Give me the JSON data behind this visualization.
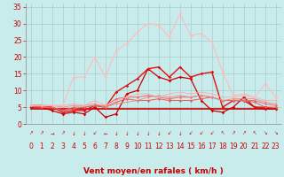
{
  "xlabel": "Vent moyen/en rafales ( km/h )",
  "bg_color": "#c8ecec",
  "grid_color": "#aacccc",
  "x_ticks": [
    0,
    1,
    2,
    3,
    4,
    5,
    6,
    7,
    8,
    9,
    10,
    11,
    12,
    13,
    14,
    15,
    16,
    17,
    18,
    19,
    20,
    21,
    22,
    23
  ],
  "ylim": [
    0,
    36
  ],
  "yticks": [
    0,
    5,
    10,
    15,
    20,
    25,
    30,
    35
  ],
  "series": [
    {
      "x": [
        0,
        1,
        2,
        3,
        4,
        5,
        6,
        7,
        8,
        9,
        10,
        11,
        12,
        13,
        14,
        15,
        16,
        17,
        18,
        19,
        20,
        21,
        22,
        23
      ],
      "y": [
        4.5,
        4.5,
        4.5,
        4.5,
        4.5,
        4.5,
        4.5,
        4.5,
        4.5,
        4.5,
        4.5,
        4.5,
        4.5,
        4.5,
        4.5,
        4.5,
        4.5,
        4.5,
        4.5,
        4.5,
        4.5,
        4.5,
        4.5,
        4.5
      ],
      "color": "#cc0000",
      "marker": null,
      "markersize": 0,
      "linewidth": 1.2
    },
    {
      "x": [
        0,
        1,
        2,
        3,
        4,
        5,
        6,
        7,
        8,
        9,
        10,
        11,
        12,
        13,
        14,
        15,
        16,
        17,
        18,
        19,
        20,
        21,
        22,
        23
      ],
      "y": [
        5,
        5,
        4,
        3,
        3.5,
        3,
        5,
        2,
        3,
        9,
        10,
        16.5,
        14,
        13,
        14,
        13.5,
        7,
        4,
        3.5,
        5,
        8,
        5,
        4.5,
        4.5
      ],
      "color": "#cc0000",
      "marker": "D",
      "markersize": 1.8,
      "linewidth": 0.9
    },
    {
      "x": [
        0,
        1,
        2,
        3,
        4,
        5,
        6,
        7,
        8,
        9,
        10,
        11,
        12,
        13,
        14,
        15,
        16,
        17,
        18,
        19,
        20,
        21,
        22,
        23
      ],
      "y": [
        5.5,
        5.5,
        5,
        3.5,
        4,
        4,
        5.5,
        5,
        9.5,
        11.5,
        13.5,
        16.5,
        17,
        14,
        17,
        14,
        15,
        15.5,
        5,
        7,
        7,
        5,
        5,
        4.5
      ],
      "color": "#dd1111",
      "marker": "D",
      "markersize": 1.8,
      "linewidth": 1.0
    },
    {
      "x": [
        0,
        1,
        2,
        3,
        4,
        5,
        6,
        7,
        8,
        9,
        10,
        11,
        12,
        13,
        14,
        15,
        16,
        17,
        18,
        19,
        20,
        21,
        22,
        23
      ],
      "y": [
        5.5,
        5,
        5,
        4,
        4.5,
        5,
        5.5,
        5,
        6.5,
        7.5,
        7,
        7,
        7.5,
        7,
        7,
        7,
        7.5,
        8,
        7,
        7,
        7,
        6.5,
        5,
        5
      ],
      "color": "#ee5555",
      "marker": "D",
      "markersize": 1.5,
      "linewidth": 0.7
    },
    {
      "x": [
        0,
        1,
        2,
        3,
        4,
        5,
        6,
        7,
        8,
        9,
        10,
        11,
        12,
        13,
        14,
        15,
        16,
        17,
        18,
        19,
        20,
        21,
        22,
        23
      ],
      "y": [
        5.5,
        5,
        5,
        4,
        5,
        5,
        5.5,
        5.5,
        7.5,
        8,
        8,
        8.5,
        8,
        7.5,
        8,
        8,
        8.5,
        8,
        7,
        7,
        7,
        7,
        6,
        5.5
      ],
      "color": "#ee6666",
      "marker": "D",
      "markersize": 1.5,
      "linewidth": 0.7
    },
    {
      "x": [
        0,
        1,
        2,
        3,
        4,
        5,
        6,
        7,
        8,
        9,
        10,
        11,
        12,
        13,
        14,
        15,
        16,
        17,
        18,
        19,
        20,
        21,
        22,
        23
      ],
      "y": [
        5.5,
        5.5,
        5.5,
        5,
        5.5,
        5.5,
        6,
        5,
        6,
        6.5,
        7,
        8,
        8.5,
        8,
        8.5,
        8,
        8.5,
        8,
        7,
        7.5,
        7.5,
        7.5,
        6.5,
        6
      ],
      "color": "#ee8888",
      "marker": "D",
      "markersize": 1.2,
      "linewidth": 0.6
    },
    {
      "x": [
        0,
        1,
        2,
        3,
        4,
        5,
        6,
        7,
        8,
        9,
        10,
        11,
        12,
        13,
        14,
        15,
        16,
        17,
        18,
        19,
        20,
        21,
        22,
        23
      ],
      "y": [
        5.5,
        5.5,
        5.5,
        5.5,
        6,
        5.5,
        7,
        5.5,
        7,
        8,
        9,
        9,
        8,
        9,
        9.5,
        9,
        9.5,
        9,
        8,
        8,
        8.5,
        8,
        7,
        7
      ],
      "color": "#ffaaaa",
      "marker": "D",
      "markersize": 1.2,
      "linewidth": 0.6
    },
    {
      "x": [
        0,
        1,
        2,
        3,
        4,
        5,
        6,
        7,
        8,
        9,
        10,
        11,
        12,
        13,
        14,
        15,
        16,
        17,
        18,
        19,
        20,
        21,
        22,
        23
      ],
      "y": [
        5.5,
        5.5,
        5.5,
        5.5,
        14,
        14,
        20,
        14,
        22,
        24,
        27.5,
        30,
        29.5,
        26,
        33,
        26.5,
        27,
        24.5,
        15.5,
        8.5,
        9,
        8,
        12,
        8
      ],
      "color": "#ffbbbb",
      "marker": "D",
      "markersize": 1.8,
      "linewidth": 0.8
    }
  ],
  "wind_arrows": [
    "↗",
    "↗",
    "→",
    "↗",
    "↓",
    "↓",
    "↙",
    "←",
    "↓",
    "↓",
    "↓",
    "↓",
    "↓",
    "↙",
    "↓",
    "↙",
    "↙",
    "↙",
    "↖",
    "↗",
    "↗",
    "↖",
    "↘",
    "↘"
  ],
  "text_color": "#cc0000",
  "axis_label_fontsize": 6.5,
  "tick_fontsize": 5.5
}
